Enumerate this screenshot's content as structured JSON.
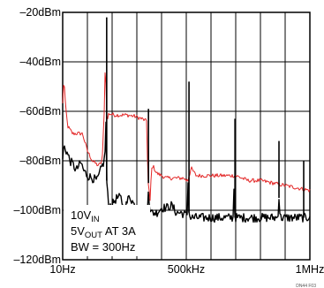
{
  "chart_data": {
    "type": "line",
    "title": "",
    "xlabel": "",
    "ylabel": "",
    "xlim": [
      0,
      1000
    ],
    "ylim": [
      -120,
      -20
    ],
    "x_unit": "kHz",
    "y_unit": "dBm",
    "y_ticks": [
      -20,
      -40,
      -60,
      -80,
      -100,
      -120
    ],
    "y_tick_labels": [
      "–20dBm",
      "–40dBm",
      "–60dBm",
      "–80dBm",
      "–100dBm",
      "–120dBm"
    ],
    "x_ticks": [
      0,
      500,
      1000
    ],
    "x_tick_labels": [
      "10Hz",
      "500kHz",
      "1MHz"
    ],
    "grid": true,
    "grid_divisions": {
      "x": 10,
      "y": 5
    },
    "series": [
      {
        "color": "#e32626",
        "x": [
          0,
          5,
          10,
          20,
          40,
          60,
          80,
          100,
          120,
          145,
          160,
          168,
          172,
          175,
          178,
          182,
          186,
          190,
          210,
          240,
          260,
          290,
          320,
          330,
          340,
          345,
          348,
          352,
          355,
          358,
          365,
          370,
          380,
          400,
          420,
          440,
          470,
          490,
          500,
          503,
          506,
          509,
          512,
          520,
          540,
          600,
          650,
          690,
          700,
          750,
          800,
          850,
          900,
          950,
          1000
        ],
        "y": [
          -57,
          -46,
          -56,
          -66,
          -69,
          -69,
          -69,
          -76,
          -80,
          -82,
          -80,
          -60,
          -42,
          -48,
          -62,
          -63,
          -61,
          -61,
          -61.5,
          -61.5,
          -61.5,
          -62,
          -63,
          -63.5,
          -64,
          -89,
          -90,
          -95,
          -98,
          -84,
          -82,
          -83,
          -85,
          -86,
          -87,
          -87,
          -87,
          -87,
          -88,
          -87,
          -89,
          -86,
          -86,
          -83,
          -86,
          -86,
          -86,
          -86,
          -86,
          -88,
          -88,
          -89,
          -90,
          -91,
          -92
        ]
      },
      {
        "color": "#000000",
        "x": [
          0,
          5,
          15,
          30,
          45,
          55,
          65,
          75,
          85,
          100,
          120,
          140,
          160,
          168,
          172,
          175,
          178,
          185,
          200,
          210,
          220,
          235,
          250,
          270,
          290,
          310,
          330,
          340,
          344,
          347,
          350,
          355,
          365,
          380,
          400,
          420,
          440,
          460,
          480,
          500,
          505,
          508,
          511,
          515,
          530,
          560,
          600,
          640,
          680,
          690,
          693,
          697,
          710,
          760,
          820,
          860,
          870,
          875,
          880,
          900,
          940,
          990,
          1000
        ],
        "y": [
          -79,
          -74,
          -76,
          -80,
          -82,
          -84,
          -82,
          -81,
          -84,
          -86,
          -87,
          -88,
          -82,
          -80,
          -75,
          -65,
          -88,
          -98,
          -98,
          -96,
          -95,
          -95,
          -100,
          -94,
          -98,
          -101,
          -101,
          -102,
          -99,
          -89,
          -96,
          -101,
          -101,
          -101,
          -99,
          -99,
          -98,
          -101,
          -101,
          -102,
          -101,
          -84,
          -101,
          -103,
          -103,
          -103,
          -103,
          -103,
          -103,
          -103,
          -90,
          -103,
          -103,
          -103,
          -103,
          -103,
          -103,
          -95,
          -103,
          -103,
          -103,
          -103,
          -102
        ]
      }
    ],
    "spikes": [
      {
        "x": 178,
        "top": -22,
        "series": 1
      },
      {
        "x": 347,
        "top": -59,
        "series": 1
      },
      {
        "x": 511,
        "top": -48,
        "series": 1
      },
      {
        "x": 697,
        "top": -63,
        "series": 1
      },
      {
        "x": 875,
        "top": -72,
        "series": 1
      },
      {
        "x": 975,
        "top": -80,
        "series": 1
      }
    ],
    "annotation": {
      "line1_main": "10V",
      "line1_sub": "IN",
      "line2_main": "5V",
      "line2_sub": "OUT",
      "line2_tail": " AT 3A",
      "line3": "BW = 300Hz"
    },
    "figure_id": "DN44 F03"
  }
}
